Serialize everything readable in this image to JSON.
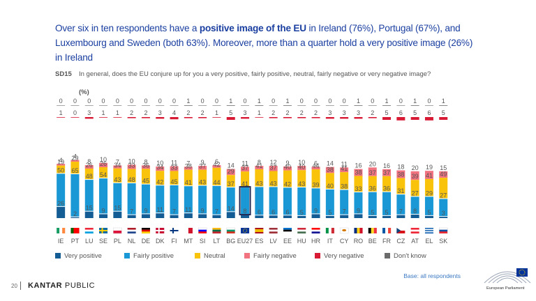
{
  "headline": {
    "p1": "Over six in ten respondents have a ",
    "p2": "positive image of the EU",
    "p3": " in Ireland (76%), Portugal (67%), and Luxembourg and Sweden (both 63%). Moreover, more than a quarter hold a very positive image (26%) in Ireland"
  },
  "question": {
    "code": "SD15",
    "text": "In general, does the EU conjure up for you a very positive, fairly positive, neutral, fairly negative or very negative image?",
    "unit": "(%)"
  },
  "base": "Base: all respondents",
  "footer": {
    "page": "20",
    "brand_bold": "KANTAR",
    "brand_light": " PUBLIC",
    "ep_label": "European Parliament"
  },
  "colors": {
    "very_positive": "#145c94",
    "fairly_positive": "#1a98d5",
    "neutral": "#f9c30c",
    "fairly_negative": "#f0737f",
    "very_negative": "#d91a35",
    "dont_know": "#6b6b6b",
    "highlight_outline": "#1e2a55"
  },
  "chart_data": {
    "type": "bar",
    "stacked": true,
    "orientation": "vertical",
    "categories": [
      "IE",
      "PT",
      "LU",
      "SE",
      "PL",
      "NL",
      "DE",
      "DK",
      "FI",
      "MT",
      "SI",
      "LT",
      "BG",
      "EU27",
      "ES",
      "LV",
      "EE",
      "HU",
      "HR",
      "IT",
      "CY",
      "RO",
      "BE",
      "FR",
      "CZ",
      "AT",
      "EL",
      "SK"
    ],
    "highlight": "EU27",
    "ylim": [
      0,
      100
    ],
    "legend_position": "bottom",
    "series": [
      {
        "name": "Very positive",
        "values": [
          26,
          2,
          15,
          9,
          15,
          7,
          9,
          11,
          7,
          11,
          9,
          7,
          14,
          8,
          6,
          6,
          6,
          5,
          9,
          5,
          7,
          9,
          5,
          5,
          7,
          8,
          5,
          3
        ]
      },
      {
        "name": "Fairly positive",
        "values": [
          50,
          65,
          48,
          54,
          43,
          48,
          45,
          42,
          45,
          41,
          43,
          44,
          37,
          41,
          43,
          43,
          42,
          43,
          39,
          40,
          38,
          33,
          36,
          36,
          31,
          27,
          29,
          27
        ]
      },
      {
        "name": "Neutral",
        "values": [
          19,
          29,
          26,
          26,
          34,
          33,
          36,
          34,
          33,
          38,
          37,
          42,
          29,
          37,
          41,
          37,
          40,
          40,
          44,
          38,
          41,
          38,
          37,
          37,
          38,
          39,
          41,
          49
        ]
      },
      {
        "name": "Fairly negative",
        "values": [
          4,
          4,
          8,
          10,
          7,
          10,
          8,
          10,
          11,
          7,
          9,
          6,
          14,
          11,
          8,
          12,
          9,
          10,
          6,
          14,
          11,
          16,
          20,
          16,
          18,
          20,
          19,
          15
        ]
      },
      {
        "name": "Very negative",
        "values": [
          1,
          0,
          3,
          1,
          1,
          2,
          2,
          3,
          4,
          2,
          2,
          1,
          5,
          3,
          1,
          2,
          2,
          2,
          2,
          3,
          3,
          3,
          2,
          5,
          6,
          5,
          6,
          5
        ]
      },
      {
        "name": "Don't know",
        "values": [
          0,
          0,
          0,
          0,
          0,
          0,
          0,
          0,
          0,
          1,
          0,
          0,
          1,
          0,
          1,
          0,
          1,
          0,
          0,
          0,
          0,
          1,
          0,
          1,
          0,
          1,
          0,
          1
        ]
      }
    ],
    "flags": {
      "IE": [
        [
          "#169b62",
          "#ffffff",
          "#ff883e"
        ],
        "v"
      ],
      "PT": [
        [
          "#006600",
          "#ff0000",
          "#ff0000"
        ],
        "v"
      ],
      "LU": [
        [
          "#ed2939",
          "#ffffff",
          "#00a1de"
        ],
        "h"
      ],
      "SE": [
        [
          "#006aa7"
        ],
        "nordic",
        "#fecc00"
      ],
      "PL": [
        [
          "#ffffff",
          "#dc143c"
        ],
        "h"
      ],
      "NL": [
        [
          "#ae1c28",
          "#ffffff",
          "#21468b"
        ],
        "h"
      ],
      "DE": [
        [
          "#000000",
          "#dd0000",
          "#ffce00"
        ],
        "h"
      ],
      "DK": [
        [
          "#c60c30"
        ],
        "nordic",
        "#ffffff"
      ],
      "FI": [
        [
          "#ffffff"
        ],
        "nordic",
        "#003580"
      ],
      "MT": [
        [
          "#ffffff",
          "#cf142b"
        ],
        "v"
      ],
      "SI": [
        [
          "#ffffff",
          "#0000ff",
          "#ff0000"
        ],
        "h"
      ],
      "LT": [
        [
          "#fdb913",
          "#006a44",
          "#c1272d"
        ],
        "h"
      ],
      "BG": [
        [
          "#ffffff",
          "#00966e",
          "#d62612"
        ],
        "h"
      ],
      "EU27": [
        [
          "#003399"
        ],
        "eu"
      ],
      "ES": [
        [
          "#aa151b",
          "#f1bf00",
          "#f1bf00",
          "#aa151b"
        ],
        "h"
      ],
      "LV": [
        [
          "#9e3039",
          "#ffffff",
          "#9e3039"
        ],
        "h"
      ],
      "EE": [
        [
          "#0072ce",
          "#000000",
          "#ffffff"
        ],
        "h"
      ],
      "HU": [
        [
          "#ce2939",
          "#ffffff",
          "#477050"
        ],
        "h"
      ],
      "HR": [
        [
          "#ff0000",
          "#ffffff",
          "#171796"
        ],
        "h"
      ],
      "IT": [
        [
          "#009246",
          "#ffffff",
          "#ce2b37"
        ],
        "v"
      ],
      "CY": [
        [
          "#ffffff"
        ],
        "cy"
      ],
      "RO": [
        [
          "#002b7f",
          "#fcd116",
          "#ce1126"
        ],
        "v"
      ],
      "BE": [
        [
          "#000000",
          "#fdda24",
          "#ef3340"
        ],
        "v"
      ],
      "FR": [
        [
          "#0055a4",
          "#ffffff",
          "#ef4135"
        ],
        "v"
      ],
      "CZ": [
        [
          "#ffffff",
          "#d7141a"
        ],
        "cz"
      ],
      "AT": [
        [
          "#ed2939",
          "#ffffff",
          "#ed2939"
        ],
        "h"
      ],
      "EL": [
        [
          "#0d5eaf",
          "#ffffff",
          "#0d5eaf",
          "#ffffff",
          "#0d5eaf"
        ],
        "h"
      ],
      "SK": [
        [
          "#ffffff",
          "#0b4ea2",
          "#ee1c25"
        ],
        "h"
      ]
    }
  }
}
